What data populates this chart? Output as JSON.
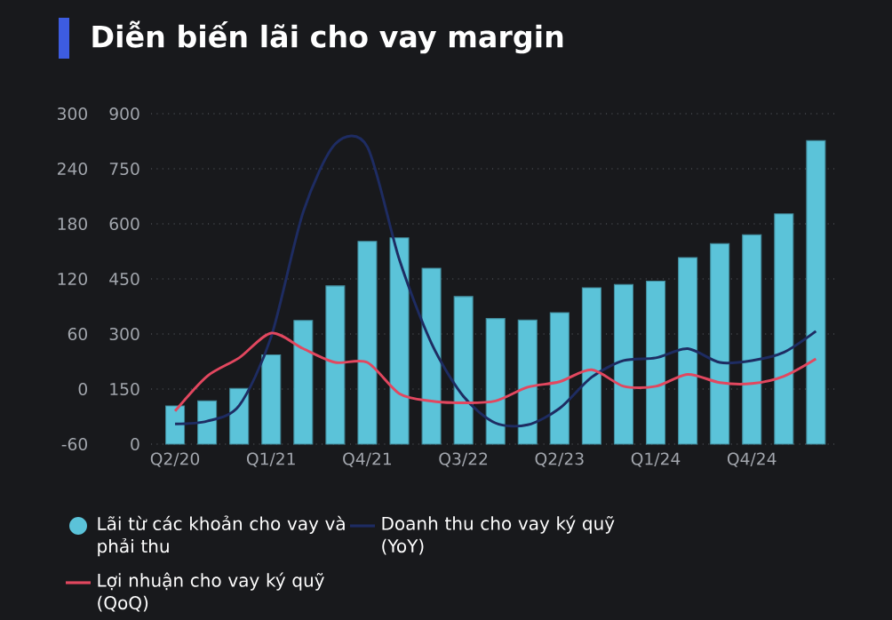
{
  "chart_data": {
    "type": "bar",
    "title": "Diễn biến lãi cho vay margin",
    "categories": [
      "Q2/20",
      null,
      null,
      "Q1/21",
      null,
      null,
      "Q4/21",
      null,
      null,
      "Q3/22",
      null,
      null,
      "Q2/23",
      null,
      null,
      "Q1/24",
      null,
      null,
      "Q4/24",
      null,
      null
    ],
    "series": [
      {
        "name": "Lãi từ các khoản cho vay và phải thu",
        "axis": "y2",
        "color": "#5bc3d9",
        "values": [
          104,
          118,
          152,
          243,
          337,
          431,
          552,
          562,
          479,
          402,
          342,
          338,
          358,
          426,
          435,
          444,
          508,
          546,
          570,
          627,
          827
        ]
      },
      {
        "name": "Doanh thu cho vay ký quỹ (YoY)",
        "type": "line",
        "color": "#1e2c62",
        "values": [
          -38,
          -35,
          -18,
          57,
          193,
          267,
          264,
          141,
          50,
          -8,
          -37,
          -39,
          -21,
          13,
          31,
          34,
          44,
          29,
          31,
          40,
          63
        ]
      },
      {
        "name": "Lợi nhuận cho vay ký quỹ (QoQ)",
        "type": "line",
        "color": "#e2475f",
        "values": [
          -24,
          14,
          34,
          61,
          44,
          29,
          29,
          -5,
          -13,
          -15,
          -13,
          2,
          8,
          21,
          3,
          3,
          16,
          7,
          6,
          14,
          33
        ]
      }
    ],
    "ylim": [
      -60,
      300
    ],
    "yticks": [
      -60,
      0,
      60,
      120,
      180,
      240,
      300
    ],
    "y2lim": [
      0,
      900
    ],
    "y2ticks": [
      0,
      150,
      300,
      450,
      600,
      750,
      900
    ],
    "grid": "y",
    "legend": "bottom"
  }
}
